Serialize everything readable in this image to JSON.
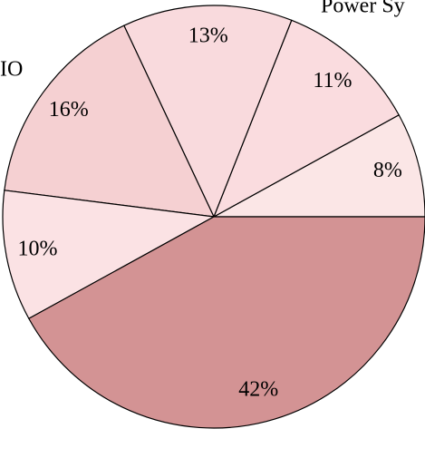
{
  "chart_data": {
    "type": "pie",
    "categories": [
      null,
      "Power Sy",
      null,
      "IO",
      null,
      null
    ],
    "values": [
      8,
      11,
      13,
      16,
      10,
      42
    ],
    "value_labels": [
      "8%",
      "11%",
      "13%",
      "16%",
      "10%",
      "42%"
    ],
    "colors": [
      "#fbe6e6",
      "#fadcdf",
      "#f9dadd",
      "#f5d0d2",
      "#fbe2e4",
      "#d39394"
    ]
  }
}
